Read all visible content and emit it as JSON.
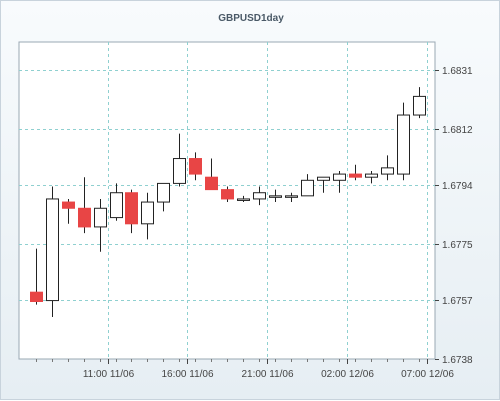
{
  "chart_data": {
    "type": "candlestick",
    "title": "GBPUSD1day",
    "ylim": [
      1.6738,
      1.684
    ],
    "y_ticks": [
      1.6738,
      1.6757,
      1.6775,
      1.6794,
      1.6812,
      1.6831
    ],
    "x_tick_labels": [
      "11:00 11/06",
      "16:00 11/06",
      "21:00 11/06",
      "02:00 12/06",
      "07:00 12/06"
    ],
    "x_tick_candle_index": [
      4.5,
      9.5,
      14.5,
      19.5,
      24.5
    ],
    "grid": true,
    "colors": {
      "up": "#ffffff",
      "down": "#e84545",
      "outline": "#222222",
      "grid": "#8fd0d0"
    },
    "candles": [
      {
        "open": 1.67595,
        "high": 1.67735,
        "low": 1.67555,
        "close": 1.67565
      },
      {
        "open": 1.67568,
        "high": 1.67935,
        "low": 1.67515,
        "close": 1.67895
      },
      {
        "open": 1.67885,
        "high": 1.67895,
        "low": 1.67815,
        "close": 1.67865
      },
      {
        "open": 1.67865,
        "high": 1.67965,
        "low": 1.67785,
        "close": 1.67805
      },
      {
        "open": 1.67805,
        "high": 1.67895,
        "low": 1.67725,
        "close": 1.67865
      },
      {
        "open": 1.67835,
        "high": 1.67945,
        "low": 1.67825,
        "close": 1.67915
      },
      {
        "open": 1.67915,
        "high": 1.67925,
        "low": 1.67785,
        "close": 1.67815
      },
      {
        "open": 1.67815,
        "high": 1.67915,
        "low": 1.67765,
        "close": 1.67885
      },
      {
        "open": 1.67885,
        "high": 1.67945,
        "low": 1.67855,
        "close": 1.67945
      },
      {
        "open": 1.67945,
        "high": 1.68105,
        "low": 1.67935,
        "close": 1.68025
      },
      {
        "open": 1.68025,
        "high": 1.68045,
        "low": 1.67955,
        "close": 1.67975
      },
      {
        "open": 1.67965,
        "high": 1.68025,
        "low": 1.67925,
        "close": 1.67925
      },
      {
        "open": 1.67925,
        "high": 1.67935,
        "low": 1.67885,
        "close": 1.67895
      },
      {
        "open": 1.67895,
        "high": 1.67905,
        "low": 1.67885,
        "close": 1.67895
      },
      {
        "open": 1.67895,
        "high": 1.67935,
        "low": 1.67875,
        "close": 1.67915
      },
      {
        "open": 1.67905,
        "high": 1.67925,
        "low": 1.67885,
        "close": 1.67905
      },
      {
        "open": 1.67905,
        "high": 1.67915,
        "low": 1.67885,
        "close": 1.67905
      },
      {
        "open": 1.67905,
        "high": 1.67975,
        "low": 1.67905,
        "close": 1.67955
      },
      {
        "open": 1.67955,
        "high": 1.67965,
        "low": 1.67915,
        "close": 1.67965
      },
      {
        "open": 1.67955,
        "high": 1.67985,
        "low": 1.67915,
        "close": 1.67975
      },
      {
        "open": 1.67975,
        "high": 1.68005,
        "low": 1.67955,
        "close": 1.67965
      },
      {
        "open": 1.67965,
        "high": 1.67985,
        "low": 1.67945,
        "close": 1.67975
      },
      {
        "open": 1.67975,
        "high": 1.68035,
        "low": 1.67955,
        "close": 1.67995
      },
      {
        "open": 1.67975,
        "high": 1.68205,
        "low": 1.67955,
        "close": 1.68165
      },
      {
        "open": 1.68165,
        "high": 1.68255,
        "low": 1.68155,
        "close": 1.68225
      }
    ]
  }
}
